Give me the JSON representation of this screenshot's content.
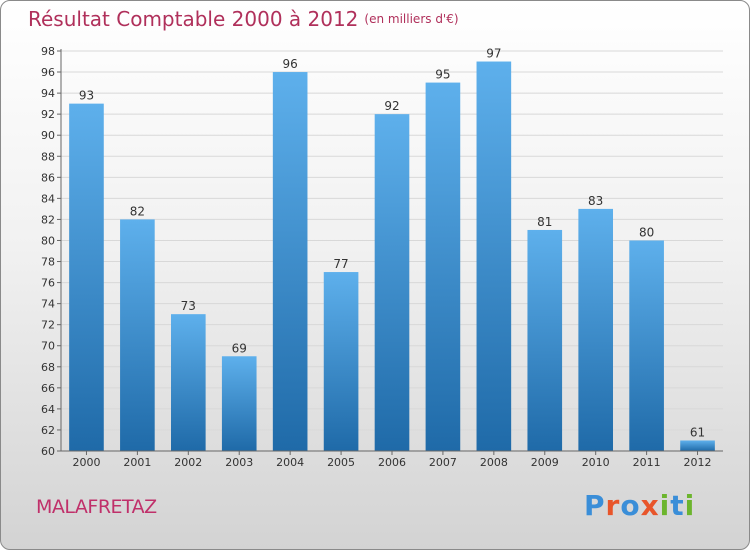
{
  "title": "Résultat Comptable 2000 à 2012",
  "subtitle": "(en milliers d'€)",
  "commune": "MALAFRETAZ",
  "logo": {
    "text": "Proxiti",
    "letters": [
      "P",
      "r",
      "o",
      "x",
      "i",
      "t",
      "i"
    ],
    "colors": [
      "#3a8ed8",
      "#e8552a",
      "#3a8ed8",
      "#e8552a",
      "#6cb52d",
      "#3a8ed8",
      "#6cb52d"
    ]
  },
  "colors": {
    "title": "#b0305b",
    "bar_light": "#5eb0ec",
    "bar_dark": "#1f6aa8",
    "grid": "#d8d8d8"
  },
  "chart_data": {
    "type": "bar",
    "title": "Résultat Comptable 2000 à 2012",
    "xlabel": "",
    "ylabel": "",
    "categories": [
      "2000",
      "2001",
      "2002",
      "2003",
      "2004",
      "2005",
      "2006",
      "2007",
      "2008",
      "2009",
      "2010",
      "2011",
      "2012"
    ],
    "values": [
      93,
      82,
      73,
      69,
      96,
      77,
      92,
      95,
      97,
      81,
      83,
      80,
      61
    ],
    "ylim": [
      60,
      98
    ],
    "yticks": [
      60,
      62,
      64,
      66,
      68,
      70,
      72,
      74,
      76,
      78,
      80,
      82,
      84,
      86,
      88,
      90,
      92,
      94,
      96,
      98
    ],
    "grid": true
  }
}
